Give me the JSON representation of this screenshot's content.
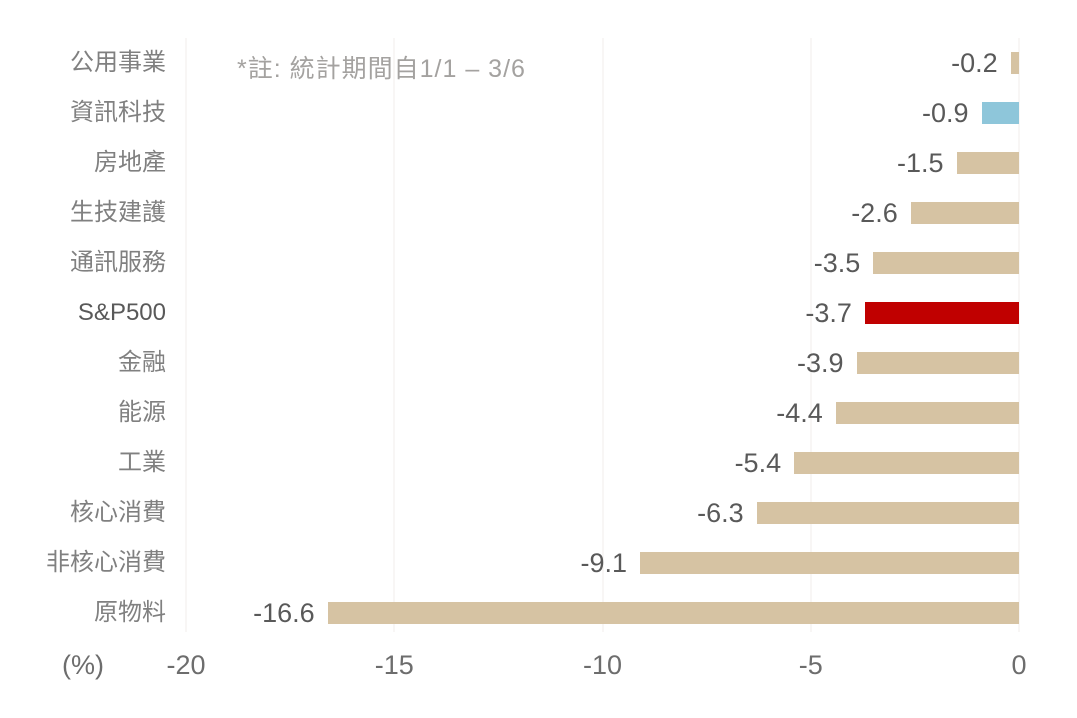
{
  "chart_data": {
    "type": "bar",
    "orientation": "horizontal",
    "title": "",
    "xlabel": "(%)",
    "xlim": [
      -20,
      0
    ],
    "x_ticks": [
      -20,
      -15,
      -10,
      -5,
      0
    ],
    "grid": true,
    "note": "*註: 統計期間自1/1 – 3/6",
    "rows": [
      {
        "category": "公用事業",
        "value": -0.2,
        "label": "-0.2",
        "bar_color": "#d6c3a3",
        "category_color": "#808080"
      },
      {
        "category": "資訊科技",
        "value": -0.9,
        "label": "-0.9",
        "bar_color": "#8ec6da",
        "category_color": "#808080"
      },
      {
        "category": "房地產",
        "value": -1.5,
        "label": "-1.5",
        "bar_color": "#d6c3a3",
        "category_color": "#808080"
      },
      {
        "category": "生技建護",
        "value": -2.6,
        "label": "-2.6",
        "bar_color": "#d6c3a3",
        "category_color": "#808080"
      },
      {
        "category": "通訊服務",
        "value": -3.5,
        "label": "-3.5",
        "bar_color": "#d6c3a3",
        "category_color": "#808080"
      },
      {
        "category": "S&P500",
        "value": -3.7,
        "label": "-3.7",
        "bar_color": "#c00000",
        "category_color": "#595959"
      },
      {
        "category": "金融",
        "value": -3.9,
        "label": "-3.9",
        "bar_color": "#d6c3a3",
        "category_color": "#808080"
      },
      {
        "category": "能源",
        "value": -4.4,
        "label": "-4.4",
        "bar_color": "#d6c3a3",
        "category_color": "#808080"
      },
      {
        "category": "工業",
        "value": -5.4,
        "label": "-5.4",
        "bar_color": "#d6c3a3",
        "category_color": "#808080"
      },
      {
        "category": "核心消費",
        "value": -6.3,
        "label": "-6.3",
        "bar_color": "#d6c3a3",
        "category_color": "#808080"
      },
      {
        "category": "非核心消費",
        "value": -9.1,
        "label": "-9.1",
        "bar_color": "#d6c3a3",
        "category_color": "#808080"
      },
      {
        "category": "原物料",
        "value": -16.6,
        "label": "-16.6",
        "bar_color": "#d6c3a3",
        "category_color": "#808080"
      }
    ],
    "colors": {
      "default_bar": "#d6c3a3",
      "highlight_blue": "#8ec6da",
      "highlight_red": "#c00000",
      "gridline": "#f0eeeb",
      "value_label": "#595959",
      "axis_label": "#6d6d6d",
      "note_text": "#a4a2a0"
    }
  }
}
